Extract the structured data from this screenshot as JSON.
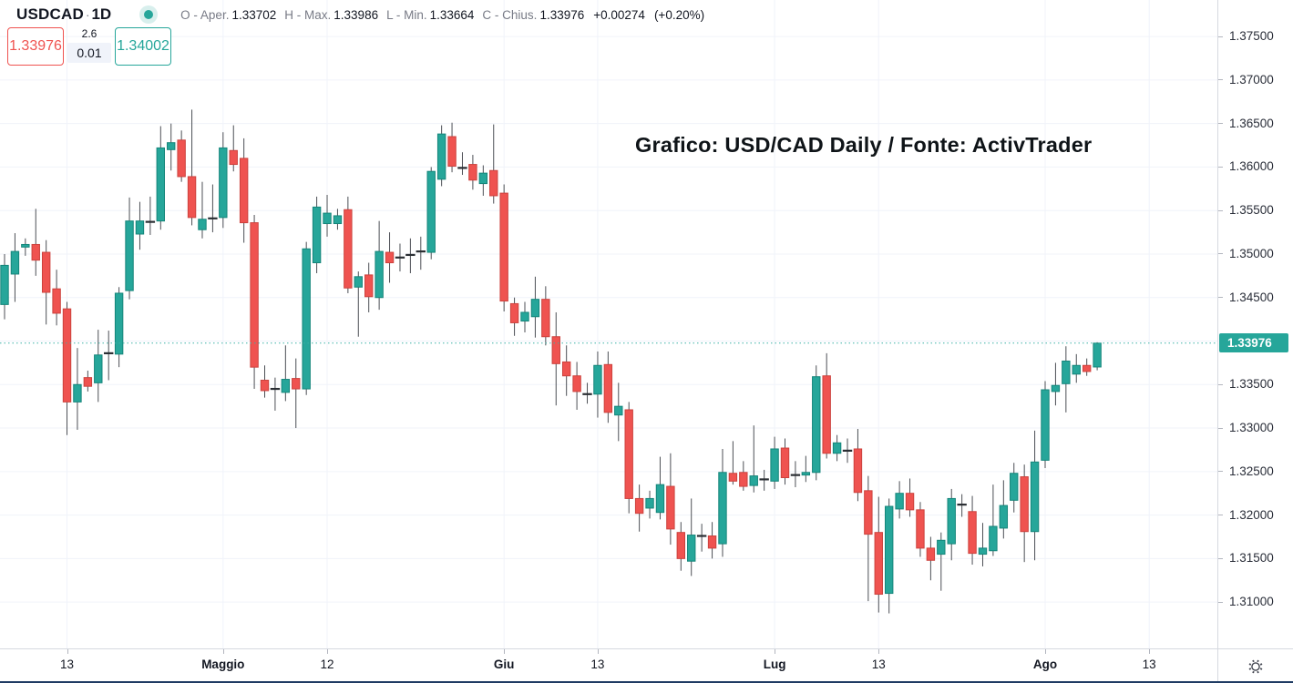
{
  "header": {
    "symbol": "USDCAD",
    "separator": "·",
    "timeframe": "1D",
    "ohlc_fields": [
      {
        "label": "O - Aper.",
        "value": "1.33702"
      },
      {
        "label": "H - Max.",
        "value": "1.33986"
      },
      {
        "label": "L - Min.",
        "value": "1.33664"
      },
      {
        "label": "C - Chius.",
        "value": "1.33976"
      }
    ],
    "change_abs": "+0.00274",
    "change_pct": "(+0.20%)"
  },
  "quote_panel": {
    "bid": "1.33976",
    "spread": "2.6",
    "lot_size": "0.01",
    "ask": "1.34002"
  },
  "annotation_text": "Grafico: USD/CAD Daily / Fonte: ActivTrader",
  "price_axis": {
    "labels": [
      "1.37500",
      "1.37000",
      "1.36500",
      "1.36000",
      "1.35500",
      "1.35000",
      "1.34500",
      "1.33500",
      "1.33000",
      "1.32500",
      "1.32000",
      "1.31500",
      "1.31000"
    ],
    "last_price_label": "1.33976"
  },
  "colors": {
    "up": "#26a69a",
    "up_border": "#15857a",
    "down": "#ef5350",
    "down_border": "#cc423d",
    "wick": "#4c4f55",
    "doji": "#2a2e33",
    "grid": "#f0f3fa",
    "last_price_line": "#3cb0a6",
    "badge_bg": "#26a69a",
    "axis_text": "#2a2e39"
  },
  "chart_data": {
    "type": "candlestick",
    "title": "USDCAD 1D candlestick chart, April to August, prices in CAD per USD",
    "ylim": [
      1.31,
      1.375
    ],
    "grid_step": 0.005,
    "last_price": 1.33976,
    "legend_position": "top-left",
    "grid": "on",
    "x_ticks": [
      {
        "i": 6,
        "label": "13",
        "month": false
      },
      {
        "i": 21,
        "label": "Maggio",
        "month": true
      },
      {
        "i": 31,
        "label": "12",
        "month": false
      },
      {
        "i": 48,
        "label": "Giu",
        "month": true
      },
      {
        "i": 57,
        "label": "13",
        "month": false
      },
      {
        "i": 74,
        "label": "Lug",
        "month": true
      },
      {
        "i": 84,
        "label": "13",
        "month": false
      },
      {
        "i": 100,
        "label": "Ago",
        "month": true
      },
      {
        "i": 110,
        "label": "13",
        "month": false
      }
    ],
    "candles": [
      [
        1.3442,
        1.35,
        1.3425,
        1.3487
      ],
      [
        1.3477,
        1.3524,
        1.3445,
        1.3503
      ],
      [
        1.3508,
        1.3518,
        1.3498,
        1.3511
      ],
      [
        1.3511,
        1.3552,
        1.3475,
        1.3493
      ],
      [
        1.3502,
        1.3516,
        1.3419,
        1.3456
      ],
      [
        1.346,
        1.3482,
        1.3418,
        1.3432
      ],
      [
        1.3437,
        1.3445,
        1.3292,
        1.333
      ],
      [
        1.333,
        1.3392,
        1.3298,
        1.335
      ],
      [
        1.3358,
        1.3366,
        1.3342,
        1.3348
      ],
      [
        1.3352,
        1.3413,
        1.333,
        1.3384
      ],
      [
        1.3384,
        1.3412,
        1.3355,
        1.3386
      ],
      [
        1.3385,
        1.3462,
        1.337,
        1.3455
      ],
      [
        1.3458,
        1.3565,
        1.3448,
        1.3538
      ],
      [
        1.3523,
        1.356,
        1.3505,
        1.3538
      ],
      [
        1.3538,
        1.3566,
        1.3522,
        1.3537
      ],
      [
        1.3538,
        1.3647,
        1.3528,
        1.3622
      ],
      [
        1.362,
        1.365,
        1.3596,
        1.3628
      ],
      [
        1.3631,
        1.3642,
        1.3583,
        1.3589
      ],
      [
        1.3589,
        1.3666,
        1.3533,
        1.3542
      ],
      [
        1.3528,
        1.3583,
        1.3518,
        1.354
      ],
      [
        1.354,
        1.358,
        1.3525,
        1.3541
      ],
      [
        1.3542,
        1.364,
        1.353,
        1.3622
      ],
      [
        1.3619,
        1.3648,
        1.3595,
        1.3603
      ],
      [
        1.361,
        1.3633,
        1.3513,
        1.3536
      ],
      [
        1.3536,
        1.3545,
        1.3345,
        1.337
      ],
      [
        1.3355,
        1.3372,
        1.3335,
        1.3343
      ],
      [
        1.3344,
        1.3358,
        1.332,
        1.3345
      ],
      [
        1.3341,
        1.3395,
        1.3331,
        1.3356
      ],
      [
        1.3357,
        1.338,
        1.33,
        1.3345
      ],
      [
        1.3345,
        1.3514,
        1.3338,
        1.3506
      ],
      [
        1.349,
        1.3566,
        1.3478,
        1.3554
      ],
      [
        1.3535,
        1.3568,
        1.352,
        1.3547
      ],
      [
        1.3535,
        1.3552,
        1.3528,
        1.3544
      ],
      [
        1.3551,
        1.3566,
        1.3455,
        1.3461
      ],
      [
        1.3462,
        1.348,
        1.3405,
        1.3474
      ],
      [
        1.3476,
        1.349,
        1.3433,
        1.3451
      ],
      [
        1.345,
        1.3538,
        1.3436,
        1.3503
      ],
      [
        1.3502,
        1.3525,
        1.3467,
        1.349
      ],
      [
        1.3495,
        1.3512,
        1.348,
        1.3496
      ],
      [
        1.3497,
        1.3518,
        1.3478,
        1.3499
      ],
      [
        1.3501,
        1.352,
        1.3482,
        1.3503
      ],
      [
        1.3502,
        1.36,
        1.3494,
        1.3595
      ],
      [
        1.3586,
        1.3648,
        1.3578,
        1.3638
      ],
      [
        1.3635,
        1.3651,
        1.3594,
        1.3601
      ],
      [
        1.3601,
        1.3617,
        1.3591,
        1.3599
      ],
      [
        1.3603,
        1.3614,
        1.3574,
        1.3585
      ],
      [
        1.3581,
        1.3602,
        1.3567,
        1.3593
      ],
      [
        1.3596,
        1.3649,
        1.3558,
        1.3567
      ],
      [
        1.357,
        1.358,
        1.3434,
        1.3446
      ],
      [
        1.3443,
        1.345,
        1.3406,
        1.3421
      ],
      [
        1.3423,
        1.3445,
        1.341,
        1.3433
      ],
      [
        1.3428,
        1.3474,
        1.3404,
        1.3448
      ],
      [
        1.3448,
        1.3463,
        1.3395,
        1.3405
      ],
      [
        1.3405,
        1.3433,
        1.3326,
        1.3374
      ],
      [
        1.3376,
        1.3395,
        1.3337,
        1.336
      ],
      [
        1.336,
        1.3376,
        1.3321,
        1.3342
      ],
      [
        1.3341,
        1.3352,
        1.3328,
        1.3339
      ],
      [
        1.3339,
        1.3388,
        1.3312,
        1.3372
      ],
      [
        1.3373,
        1.3388,
        1.3306,
        1.3318
      ],
      [
        1.3315,
        1.3352,
        1.3285,
        1.3325
      ],
      [
        1.3321,
        1.333,
        1.3202,
        1.3219
      ],
      [
        1.3219,
        1.3235,
        1.3181,
        1.3202
      ],
      [
        1.3208,
        1.3228,
        1.3196,
        1.3219
      ],
      [
        1.3203,
        1.3267,
        1.3195,
        1.3235
      ],
      [
        1.3233,
        1.3271,
        1.3166,
        1.3184
      ],
      [
        1.318,
        1.3192,
        1.3136,
        1.315
      ],
      [
        1.3147,
        1.3219,
        1.313,
        1.3177
      ],
      [
        1.3174,
        1.319,
        1.3158,
        1.3176
      ],
      [
        1.3176,
        1.3192,
        1.315,
        1.3162
      ],
      [
        1.3167,
        1.3276,
        1.3152,
        1.3249
      ],
      [
        1.3248,
        1.3285,
        1.3235,
        1.3239
      ],
      [
        1.3249,
        1.3262,
        1.3228,
        1.3233
      ],
      [
        1.3234,
        1.3303,
        1.3226,
        1.3245
      ],
      [
        1.324,
        1.3252,
        1.3228,
        1.3241
      ],
      [
        1.3239,
        1.329,
        1.323,
        1.3276
      ],
      [
        1.3277,
        1.3288,
        1.3235,
        1.3243
      ],
      [
        1.3244,
        1.3262,
        1.3232,
        1.3246
      ],
      [
        1.3246,
        1.3268,
        1.3238,
        1.3249
      ],
      [
        1.3249,
        1.3372,
        1.324,
        1.3359
      ],
      [
        1.336,
        1.3386,
        1.3265,
        1.3271
      ],
      [
        1.3271,
        1.3292,
        1.3262,
        1.3283
      ],
      [
        1.3273,
        1.3288,
        1.326,
        1.3274
      ],
      [
        1.3276,
        1.3299,
        1.3216,
        1.3226
      ],
      [
        1.3228,
        1.3245,
        1.3101,
        1.3178
      ],
      [
        1.318,
        1.3221,
        1.3088,
        1.3109
      ],
      [
        1.311,
        1.3219,
        1.3087,
        1.321
      ],
      [
        1.3207,
        1.3239,
        1.3196,
        1.3225
      ],
      [
        1.3225,
        1.3242,
        1.3198,
        1.3206
      ],
      [
        1.3206,
        1.3215,
        1.3152,
        1.3162
      ],
      [
        1.3162,
        1.3175,
        1.3125,
        1.3148
      ],
      [
        1.3155,
        1.318,
        1.3113,
        1.3171
      ],
      [
        1.3167,
        1.323,
        1.3148,
        1.3219
      ],
      [
        1.321,
        1.3224,
        1.3198,
        1.3212
      ],
      [
        1.3204,
        1.3222,
        1.3143,
        1.3156
      ],
      [
        1.3155,
        1.3191,
        1.3141,
        1.3162
      ],
      [
        1.3159,
        1.3235,
        1.3153,
        1.3187
      ],
      [
        1.3185,
        1.324,
        1.3173,
        1.3211
      ],
      [
        1.3217,
        1.326,
        1.3203,
        1.3248
      ],
      [
        1.3244,
        1.3258,
        1.3146,
        1.3181
      ],
      [
        1.3181,
        1.3297,
        1.3148,
        1.3261
      ],
      [
        1.3263,
        1.3354,
        1.3254,
        1.3344
      ],
      [
        1.3342,
        1.3375,
        1.3326,
        1.3349
      ],
      [
        1.3351,
        1.3394,
        1.3318,
        1.3377
      ],
      [
        1.3362,
        1.3385,
        1.3352,
        1.3372
      ],
      [
        1.3372,
        1.338,
        1.336,
        1.3365
      ],
      [
        1.33702,
        1.33986,
        1.33664,
        1.33976
      ]
    ]
  }
}
